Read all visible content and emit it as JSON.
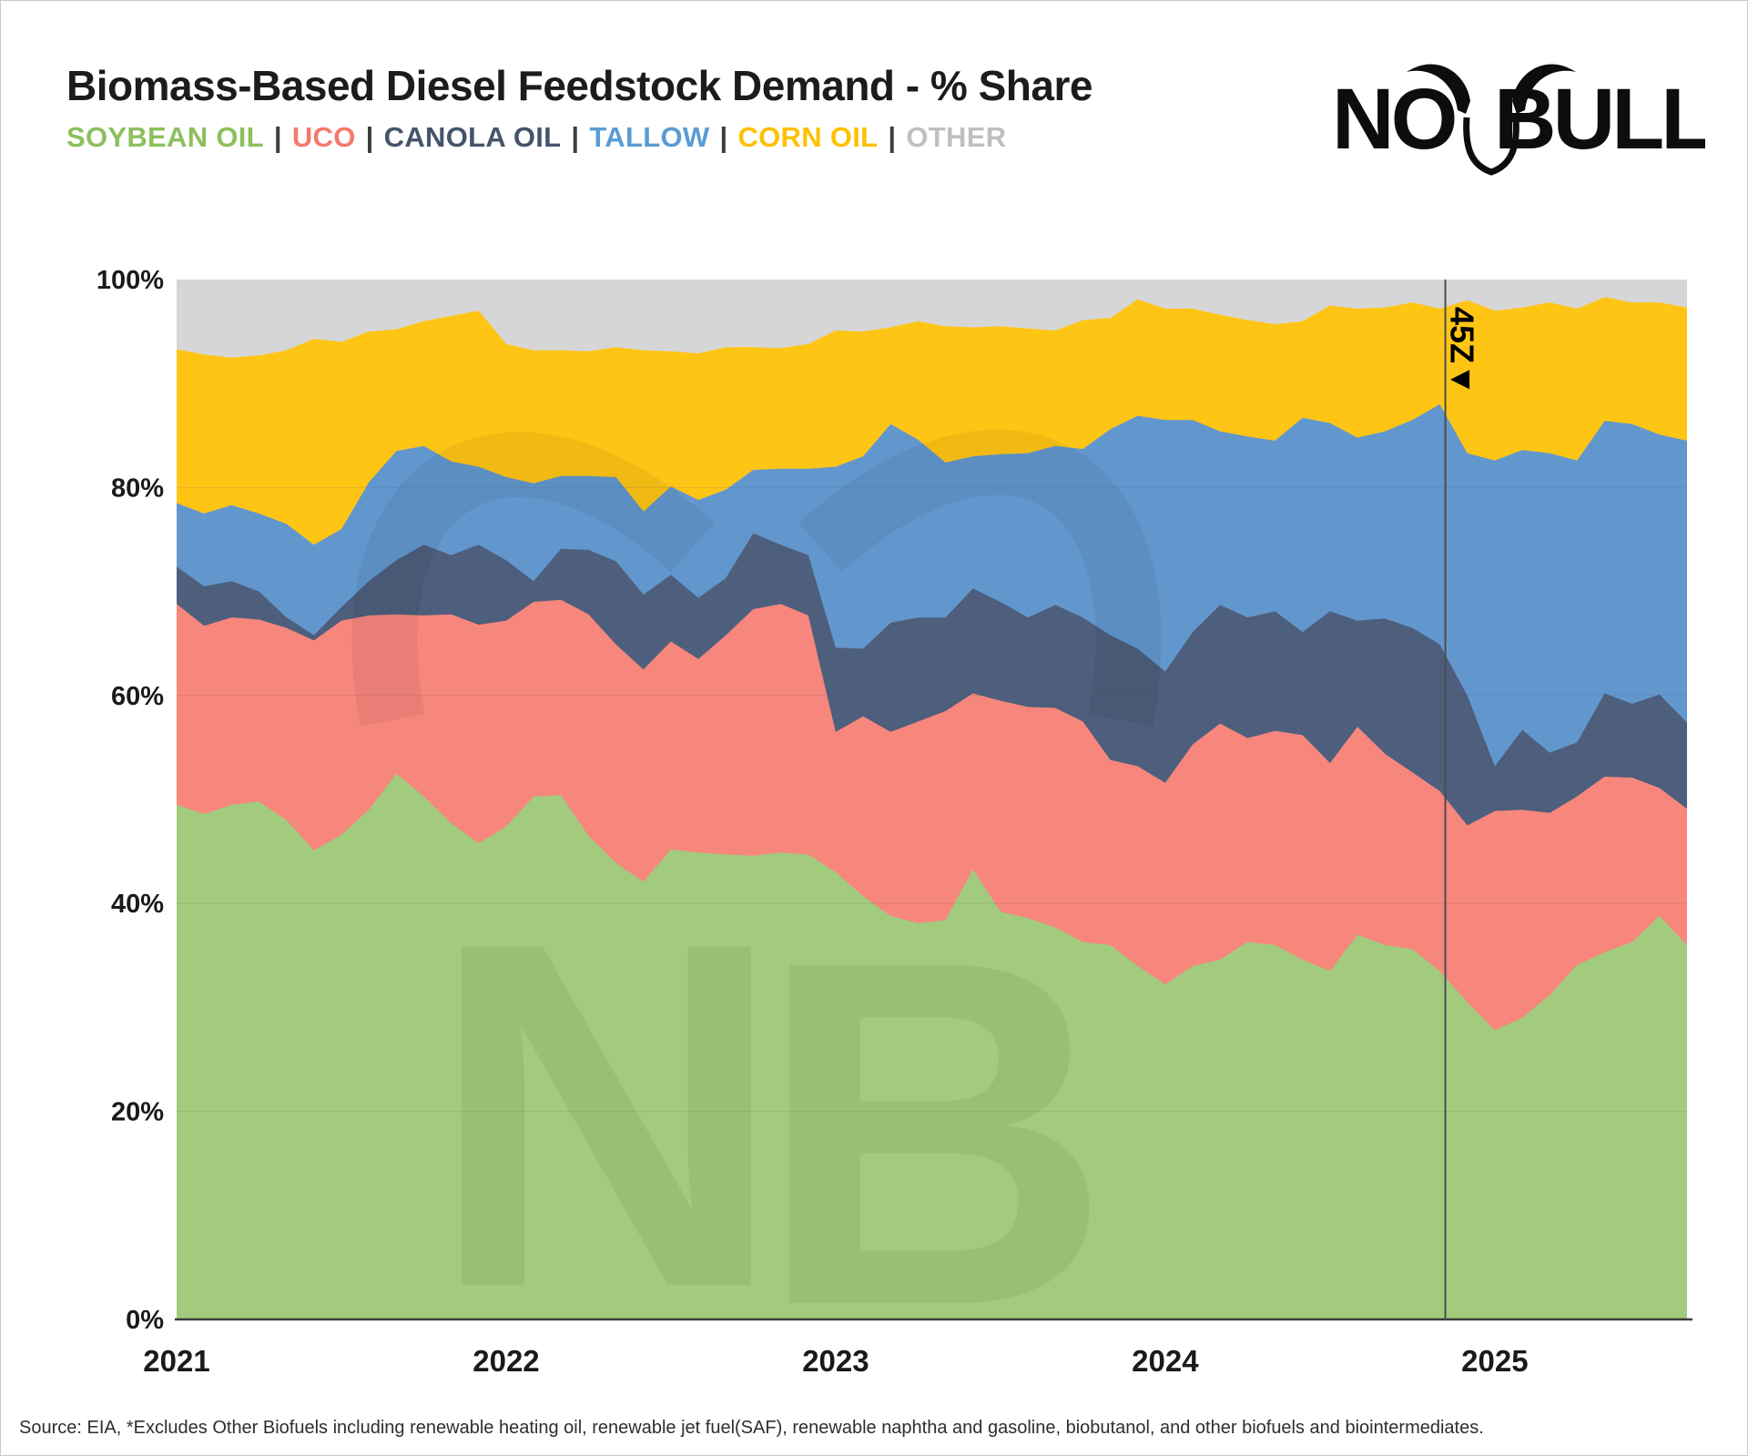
{
  "title": "Biomass-Based Diesel Feedstock Demand - % Share",
  "logo": {
    "no": "NO",
    "bull": "BULL"
  },
  "legend": {
    "separator": "|",
    "items": [
      {
        "label": "SOYBEAN OIL",
        "color": "#8dbf5e"
      },
      {
        "label": "UCO",
        "color": "#f4796c"
      },
      {
        "label": "CANOLA OIL",
        "color": "#44546a"
      },
      {
        "label": "TALLOW",
        "color": "#5b9bd5"
      },
      {
        "label": "CORN OIL",
        "color": "#ffc000"
      },
      {
        "label": "OTHER",
        "color": "#bfbfbf"
      }
    ]
  },
  "annotation": {
    "label": "45Z",
    "marker": "▼",
    "at_month_index": 46.2
  },
  "source_note": "Source: EIA,  *Excludes Other Biofuels including renewable heating oil, renewable jet fuel(SAF), renewable naphtha and gasoline, biobutanol, and other biofuels and biointermediates.",
  "axes": {
    "y_ticks": [
      {
        "label": "100%",
        "value": 100
      },
      {
        "label": "80%",
        "value": 80
      },
      {
        "label": "60%",
        "value": 60
      },
      {
        "label": "40%",
        "value": 40
      },
      {
        "label": "20%",
        "value": 20
      },
      {
        "label": "0%",
        "value": 0
      }
    ],
    "x_ticks": [
      {
        "label": "2021",
        "month_index": 0
      },
      {
        "label": "2022",
        "month_index": 12
      },
      {
        "label": "2023",
        "month_index": 24
      },
      {
        "label": "2024",
        "month_index": 36
      },
      {
        "label": "2025",
        "month_index": 48
      }
    ]
  },
  "chart_data": {
    "type": "area",
    "stacked": true,
    "x_frequency": "monthly",
    "ylim": [
      0,
      100
    ],
    "grid": "horizontal-faint",
    "legend_position": "top-left-inline",
    "months": [
      "2021-01",
      "2021-02",
      "2021-03",
      "2021-04",
      "2021-05",
      "2021-06",
      "2021-07",
      "2021-08",
      "2021-09",
      "2021-10",
      "2021-11",
      "2021-12",
      "2022-01",
      "2022-02",
      "2022-03",
      "2022-04",
      "2022-05",
      "2022-06",
      "2022-07",
      "2022-08",
      "2022-09",
      "2022-10",
      "2022-11",
      "2022-12",
      "2023-01",
      "2023-02",
      "2023-03",
      "2023-04",
      "2023-05",
      "2023-06",
      "2023-07",
      "2023-08",
      "2023-09",
      "2023-10",
      "2023-11",
      "2023-12",
      "2024-01",
      "2024-02",
      "2024-03",
      "2024-04",
      "2024-05",
      "2024-06",
      "2024-07",
      "2024-08",
      "2024-09",
      "2024-10",
      "2024-11",
      "2024-12",
      "2025-01",
      "2025-02",
      "2025-03",
      "2025-04",
      "2025-05",
      "2025-06",
      "2025-07",
      "2025-08"
    ],
    "series": [
      {
        "name": "SOYBEAN OIL",
        "color": "#a3cb7d",
        "values": [
          49.5,
          48.6,
          49.5,
          49.8,
          48.0,
          45.1,
          46.6,
          49.0,
          52.5,
          50.3,
          47.7,
          45.8,
          47.4,
          50.3,
          50.4,
          46.5,
          43.9,
          42.1,
          45.2,
          44.9,
          44.7,
          44.6,
          44.9,
          44.7,
          43.0,
          40.7,
          38.8,
          38.1,
          38.4,
          43.3,
          39.2,
          38.6,
          37.7,
          36.3,
          36.0,
          34.0,
          32.2,
          34.0,
          34.6,
          36.3,
          36.0,
          34.6,
          33.5,
          37.0,
          36.0,
          35.6,
          33.5,
          30.5,
          27.8,
          29.0,
          31.2,
          34.1,
          35.3,
          36.3,
          38.8,
          36.0
        ]
      },
      {
        "name": "UCO",
        "color": "#f7867d",
        "values": [
          19.3,
          18.1,
          18.0,
          17.5,
          18.5,
          20.2,
          20.6,
          18.7,
          15.3,
          17.4,
          20.1,
          21.0,
          19.8,
          18.7,
          18.8,
          21.3,
          21.0,
          20.4,
          20.0,
          18.6,
          21.1,
          23.7,
          23.9,
          23.0,
          13.5,
          17.3,
          17.7,
          19.4,
          20.1,
          16.9,
          20.3,
          20.3,
          21.1,
          21.2,
          17.8,
          19.2,
          19.4,
          21.3,
          22.7,
          19.6,
          20.6,
          21.6,
          20.0,
          20.0,
          18.4,
          17.0,
          17.3,
          17.0,
          21.1,
          20.0,
          17.5,
          16.2,
          16.9,
          15.8,
          12.3,
          13.1
        ]
      },
      {
        "name": "CANOLA OIL",
        "color": "#4d5f7c",
        "values": [
          3.6,
          3.8,
          3.5,
          2.7,
          1.0,
          0.5,
          1.3,
          3.3,
          5.2,
          6.8,
          5.7,
          7.7,
          5.8,
          2.0,
          4.9,
          6.2,
          8.0,
          7.2,
          6.4,
          5.9,
          5.5,
          7.3,
          5.7,
          5.8,
          8.1,
          6.5,
          10.5,
          10.0,
          9.0,
          10.1,
          9.5,
          8.6,
          9.9,
          10.0,
          12.0,
          11.3,
          10.7,
          10.8,
          11.4,
          11.6,
          11.5,
          9.9,
          14.6,
          10.2,
          13.0,
          13.9,
          14.1,
          12.5,
          4.3,
          7.7,
          5.8,
          5.2,
          8.0,
          7.1,
          9.0,
          8.3
        ]
      },
      {
        "name": "TALLOW",
        "color": "#6297ce",
        "values": [
          6.1,
          7.0,
          7.3,
          7.5,
          9.0,
          8.7,
          7.5,
          9.5,
          10.5,
          9.5,
          9.0,
          7.5,
          8.0,
          9.4,
          7.0,
          7.1,
          8.1,
          8.0,
          8.5,
          9.4,
          8.5,
          6.1,
          7.3,
          8.3,
          17.4,
          18.5,
          19.1,
          17.1,
          14.9,
          12.7,
          14.2,
          15.8,
          15.3,
          16.2,
          19.8,
          22.4,
          24.2,
          20.4,
          16.7,
          17.4,
          16.4,
          20.6,
          18.1,
          17.6,
          18.0,
          20.0,
          23.1,
          23.3,
          29.4,
          26.9,
          28.8,
          27.1,
          26.2,
          26.9,
          25.0,
          27.1
        ]
      },
      {
        "name": "CORN OIL",
        "color": "#ffc515",
        "values": [
          14.8,
          15.3,
          14.2,
          15.2,
          16.7,
          19.8,
          18.0,
          14.5,
          11.7,
          12.0,
          14.0,
          15.0,
          12.8,
          12.8,
          12.1,
          12.0,
          12.5,
          15.5,
          13.0,
          14.1,
          13.7,
          11.8,
          11.6,
          12.0,
          13.1,
          12.0,
          9.3,
          11.4,
          13.1,
          12.4,
          12.3,
          12.0,
          11.1,
          12.4,
          10.7,
          11.2,
          10.7,
          10.7,
          11.2,
          11.2,
          11.2,
          9.3,
          11.3,
          12.4,
          11.9,
          11.3,
          9.2,
          14.7,
          14.4,
          13.7,
          14.5,
          14.6,
          11.9,
          11.7,
          12.7,
          12.8
        ]
      },
      {
        "name": "OTHER",
        "color": "#d6d6d6",
        "values": [
          6.7,
          7.2,
          7.5,
          7.3,
          6.8,
          5.7,
          6.0,
          5.0,
          4.8,
          4.0,
          3.5,
          3.0,
          6.2,
          6.8,
          6.8,
          6.9,
          6.5,
          6.8,
          6.9,
          7.1,
          6.5,
          6.5,
          6.6,
          6.2,
          4.9,
          5.0,
          4.6,
          4.0,
          4.5,
          4.6,
          4.5,
          4.7,
          4.9,
          3.9,
          3.7,
          1.9,
          2.8,
          2.8,
          3.4,
          3.9,
          4.3,
          4.0,
          2.5,
          2.8,
          2.7,
          2.2,
          2.8,
          2.0,
          3.0,
          2.7,
          2.2,
          2.8,
          1.7,
          2.2,
          2.2,
          2.7
        ]
      }
    ]
  }
}
